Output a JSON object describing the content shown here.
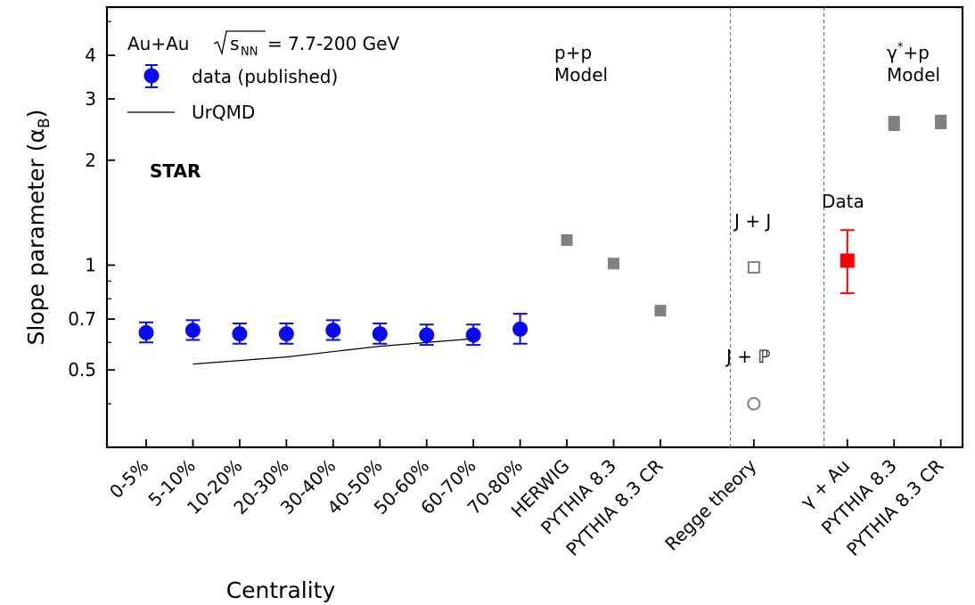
{
  "chart_data": {
    "type": "scatter",
    "yscale": "log",
    "ylim": [
      0.3,
      5.5
    ],
    "ylabel_main": "Slope parameter (α",
    "ylabel_sub": "B",
    "ylabel_close": ")",
    "xlabel": "Centrality",
    "yticks": [
      {
        "value": 0.5,
        "label": "0.5"
      },
      {
        "value": 0.7,
        "label": "0.7"
      },
      {
        "value": 1,
        "label": "1"
      },
      {
        "value": 2,
        "label": "2"
      },
      {
        "value": 3,
        "label": "3"
      },
      {
        "value": 4,
        "label": "4"
      }
    ],
    "minor_yticks": [
      0.4,
      0.6,
      0.8,
      0.9,
      5
    ],
    "categories": [
      "0-5%",
      "5-10%",
      "10-20%",
      "20-30%",
      "30-40%",
      "40-50%",
      "50-60%",
      "60-70%",
      "70-80%",
      "HERWIG",
      "PYTHIA 8.3",
      "PYTHIA 8.3 CR",
      "",
      "Regge theory",
      "",
      "γ + Au",
      "PYTHIA 8.3",
      "PYTHIA 8.3 CR"
    ],
    "separators_after_index": [
      12,
      14
    ],
    "series": [
      {
        "name": "data (published)",
        "marker": "circle",
        "color": "#0a0af0",
        "points": [
          {
            "x": 0,
            "y": 0.64,
            "err_lo": 0.04,
            "err_hi": 0.045
          },
          {
            "x": 1,
            "y": 0.65,
            "err_lo": 0.04,
            "err_hi": 0.045
          },
          {
            "x": 2,
            "y": 0.635,
            "err_lo": 0.04,
            "err_hi": 0.045
          },
          {
            "x": 3,
            "y": 0.635,
            "err_lo": 0.04,
            "err_hi": 0.045
          },
          {
            "x": 4,
            "y": 0.65,
            "err_lo": 0.04,
            "err_hi": 0.045
          },
          {
            "x": 5,
            "y": 0.635,
            "err_lo": 0.04,
            "err_hi": 0.045
          },
          {
            "x": 6,
            "y": 0.63,
            "err_lo": 0.04,
            "err_hi": 0.045
          },
          {
            "x": 7,
            "y": 0.63,
            "err_lo": 0.04,
            "err_hi": 0.045
          },
          {
            "x": 8,
            "y": 0.655,
            "err_lo": 0.06,
            "err_hi": 0.07
          }
        ]
      },
      {
        "name": "UrQMD",
        "marker": "line",
        "color": "#000000",
        "points": [
          {
            "x": 1,
            "y": 0.52
          },
          {
            "x": 3,
            "y": 0.545
          },
          {
            "x": 5,
            "y": 0.585
          },
          {
            "x": 7,
            "y": 0.615
          }
        ]
      },
      {
        "marker": "gray-square",
        "color": "#808080",
        "points": [
          {
            "x": 9,
            "y": 1.18
          },
          {
            "x": 10,
            "y": 1.01
          },
          {
            "x": 11,
            "y": 0.74
          },
          {
            "x": 16,
            "y": 2.52
          },
          {
            "x": 16,
            "y": 2.58
          },
          {
            "x": 17,
            "y": 2.55
          },
          {
            "x": 17,
            "y": 2.6
          }
        ]
      },
      {
        "marker": "open-square",
        "color": "#808080",
        "points": [
          {
            "x": 13,
            "y": 0.985
          }
        ]
      },
      {
        "marker": "open-circle",
        "color": "#808080",
        "points": [
          {
            "x": 13,
            "y": 0.4
          }
        ]
      },
      {
        "marker": "red-square",
        "color": "#ff0000",
        "points": [
          {
            "x": 15,
            "y": 1.03,
            "err_lo": 0.2,
            "err_hi": 0.23
          }
        ]
      }
    ],
    "legend": {
      "placement": "top-left",
      "title_prefix": "Au+Au ",
      "title_root": "s",
      "title_root_sub": "NN",
      "title_suffix": " = 7.7-200 GeV",
      "entries": [
        "data (published)",
        "UrQMD"
      ]
    },
    "annotations": {
      "star": "STAR",
      "pp_line1": "p+p",
      "pp_line2": "Model",
      "jj": "J + J",
      "jp": "J + ℙ",
      "data": "Data",
      "gp_gamma": "γ",
      "gp_star": "*",
      "gp_rest": "+p",
      "gp_line2": "Model"
    }
  }
}
